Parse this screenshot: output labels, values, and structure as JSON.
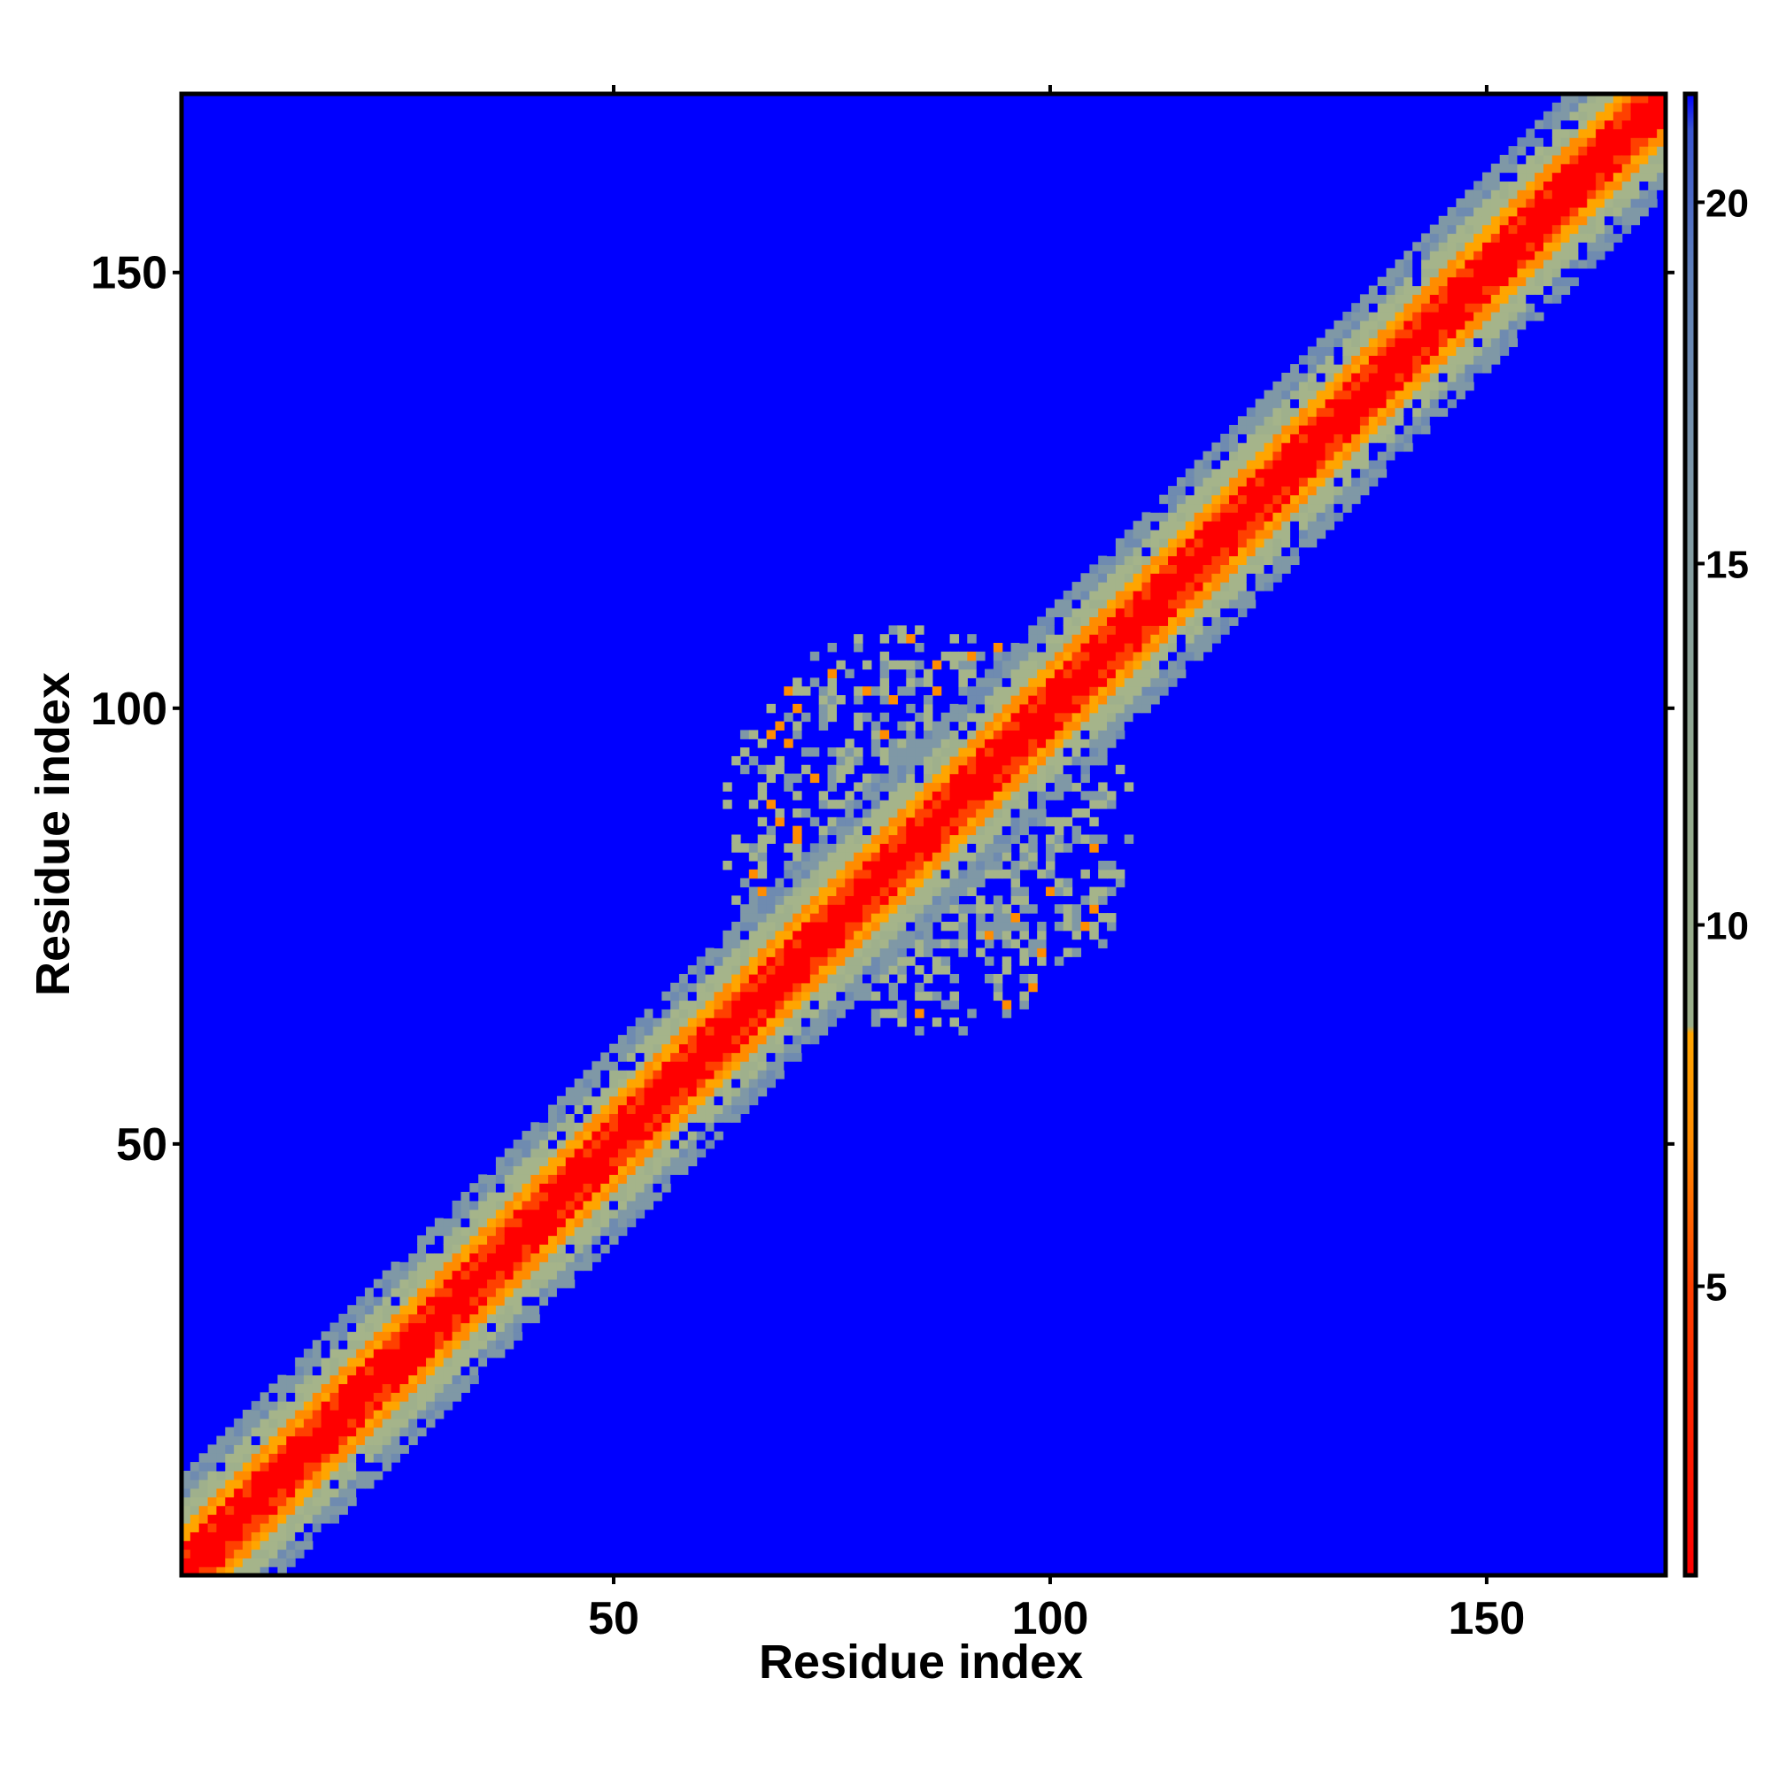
{
  "chart_data": {
    "type": "heatmap",
    "title": "",
    "xlabel": "Residue index",
    "ylabel": "Residue index",
    "xlim": [
      1,
      170
    ],
    "ylim": [
      1,
      170
    ],
    "x_ticks": [
      50,
      100,
      150
    ],
    "y_ticks": [
      50,
      100,
      150
    ],
    "grid": false,
    "legend": "right",
    "colorbar": {
      "range": [
        1,
        21.5
      ],
      "ticks": [
        5,
        10,
        15,
        20
      ],
      "stops": [
        {
          "value": 1,
          "color": "#ff0000"
        },
        {
          "value": 5,
          "color": "#ff4000"
        },
        {
          "value": 7,
          "color": "#ff8c00"
        },
        {
          "value": 8.5,
          "color": "#ffa500"
        },
        {
          "value": 8.6,
          "color": "#9aae8a"
        },
        {
          "value": 12,
          "color": "#93a98e"
        },
        {
          "value": 16,
          "color": "#7f98a6"
        },
        {
          "value": 19,
          "color": "#5f80b8"
        },
        {
          "value": 21,
          "color": "#3a55d0"
        },
        {
          "value": 21.5,
          "color": "#0000ff"
        }
      ]
    },
    "colors": {
      "background": "#0000ff",
      "diagonal": "#ff0000",
      "near": "#ff8c00",
      "mid": "#a5b48a",
      "far": "#7f98a6"
    },
    "diagonal_band": {
      "half_width_residues": 11
    },
    "contact_clusters": [
      {
        "center": [
          86,
          86
        ],
        "radius": 24,
        "description_values": [
          6,
          21
        ]
      },
      {
        "center": [
          45,
          45
        ],
        "radius": 8,
        "description_values": [
          6,
          21
        ]
      },
      {
        "center": [
          60,
          60
        ],
        "radius": 7,
        "description_values": [
          6,
          21
        ]
      },
      {
        "center": [
          110,
          110
        ],
        "radius": 8,
        "description_values": [
          6,
          21
        ]
      }
    ]
  }
}
